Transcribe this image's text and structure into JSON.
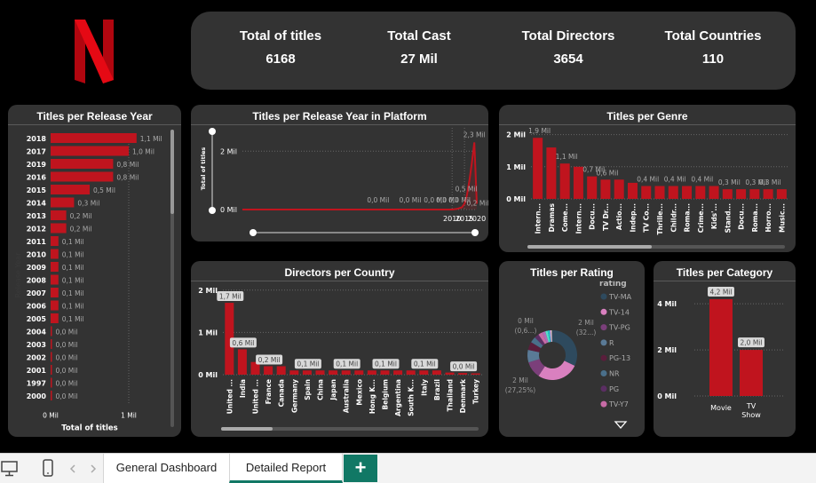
{
  "brand": {
    "logo_letter": "N",
    "logo_color": "#e50914"
  },
  "accent": "#c0141e",
  "kpis": [
    {
      "label": "Total of titles",
      "value": "6168"
    },
    {
      "label": "Total Cast",
      "value": "27 Mil"
    },
    {
      "label": "Total Directors",
      "value": "3654"
    },
    {
      "label": "Total Countries",
      "value": "110"
    }
  ],
  "panels": {
    "release_year": "Titles per Release Year",
    "platform": "Titles per Release Year in Platform",
    "genre": "Titles per Genre",
    "country": "Directors per Country",
    "rating": "Titles per Rating",
    "category": "Titles per Category"
  },
  "tabs": {
    "general": "General Dashboard",
    "detailed": "Detailed Report",
    "add": "+"
  },
  "chart_data": [
    {
      "id": "release_year",
      "type": "bar",
      "orientation": "horizontal",
      "categories": [
        "2018",
        "2017",
        "2019",
        "2016",
        "2015",
        "2014",
        "2013",
        "2012",
        "2011",
        "2010",
        "2009",
        "2008",
        "2007",
        "2006",
        "2005",
        "2004",
        "2003",
        "2002",
        "2001",
        "1997",
        "2000"
      ],
      "values": [
        1.1,
        1.0,
        0.8,
        0.8,
        0.5,
        0.3,
        0.2,
        0.2,
        0.1,
        0.1,
        0.1,
        0.1,
        0.1,
        0.1,
        0.1,
        0.0,
        0.0,
        0.0,
        0.0,
        0.0,
        0.0
      ],
      "labels": [
        "1,1 Mil",
        "1,0 Mil",
        "0,8 Mil",
        "0,8 Mil",
        "0,5 Mil",
        "0,3 Mil",
        "0,2 Mil",
        "0,2 Mil",
        "0,1 Mil",
        "0,1 Mil",
        "0,1 Mil",
        "0,1 Mil",
        "0,1 Mil",
        "0,1 Mil",
        "0,1 Mil",
        "0,0 Mil",
        "0,0 Mil",
        "0,0 Mil",
        "0,0 Mil",
        "0,0 Mil",
        "0,0 Mil"
      ],
      "xticks": [
        "0 Mil",
        "1 Mil"
      ],
      "xlabel": "Total of titles",
      "ylabel": "Release Year",
      "xlim": [
        0,
        1.2
      ]
    },
    {
      "id": "platform",
      "type": "area",
      "x": [
        1925,
        1995,
        2000,
        2005,
        2008,
        2010,
        2012,
        2014,
        2015,
        2016,
        2017,
        2018,
        2019,
        2020
      ],
      "y": [
        0,
        0,
        0,
        0,
        0,
        0,
        0.02,
        0.08,
        0.2,
        0.5,
        1.0,
        1.6,
        2.3,
        0.2
      ],
      "labels": [
        "0,0 Mil",
        "0,0 Mil",
        "0,0 Mil",
        "0,0 Mil",
        "0,0 Mil",
        "0,5 Mil",
        "2,3 Mil",
        "0,2 Mil"
      ],
      "xticks": [
        "2010",
        "2015",
        "2020"
      ],
      "yticks": [
        "0 Mil",
        "2 Mil"
      ],
      "ylabel": "Total of titles",
      "ylim": [
        0,
        2.8
      ]
    },
    {
      "id": "genre",
      "type": "bar",
      "categories": [
        "Intern...",
        "Dramas",
        "Come...",
        "Intern...",
        "Docu...",
        "TV Dr...",
        "Actio...",
        "Indep...",
        "TV Co...",
        "Thrille...",
        "Childr...",
        "Roma...",
        "Crime...",
        "Kids'...",
        "Stand...",
        "Docu...",
        "Roma...",
        "Horro...",
        "Music..."
      ],
      "values": [
        1.9,
        1.6,
        1.1,
        1.0,
        0.7,
        0.6,
        0.6,
        0.5,
        0.4,
        0.4,
        0.4,
        0.4,
        0.4,
        0.4,
        0.3,
        0.3,
        0.3,
        0.3,
        0.3
      ],
      "labels": [
        "1,9 Mil",
        "",
        "1,1 Mil",
        "",
        "0,7 Mil",
        "0,6 Mil",
        "",
        "",
        "0,4 Mil",
        "",
        "0,4 Mil",
        "",
        "0,4 Mil",
        "",
        "0,3 Mil",
        "",
        "0,3 Mil",
        "0,3 Mil",
        ""
      ],
      "yticks": [
        "2 Mil",
        "1 Mil",
        "0 Mil"
      ],
      "ylim": [
        0,
        2.1
      ]
    },
    {
      "id": "country",
      "type": "bar",
      "categories": [
        "United ...",
        "India",
        "United ...",
        "France",
        "Canada",
        "Germany",
        "Spain",
        "China",
        "Japan",
        "Australia",
        "Mexico",
        "Hong K...",
        "Belgium",
        "Argentina",
        "South K...",
        "Italy",
        "Brazil",
        "Thailand",
        "Denmark",
        "Turkey"
      ],
      "values": [
        1.7,
        0.6,
        0.3,
        0.2,
        0.2,
        0.1,
        0.1,
        0.1,
        0.1,
        0.1,
        0.1,
        0.1,
        0.1,
        0.1,
        0.1,
        0.1,
        0.1,
        0.05,
        0.04,
        0.03
      ],
      "labels": [
        "1,7 Mil",
        "0,6 Mil",
        "",
        "0,2 Mil",
        "",
        "",
        "0,1 Mil",
        "",
        "",
        "0,1 Mil",
        "",
        "",
        "0,1 Mil",
        "",
        "",
        "0,1 Mil",
        "",
        "",
        "0,0 Mil",
        ""
      ],
      "yticks": [
        "2 Mil",
        "1 Mil",
        "0 Mil"
      ],
      "ylim": [
        0,
        2.1
      ]
    },
    {
      "id": "rating",
      "type": "pie",
      "legend_title": "rating",
      "legend": [
        {
          "name": "TV-MA",
          "color": "#2e4a5e"
        },
        {
          "name": "TV-14",
          "color": "#d980bf"
        },
        {
          "name": "TV-PG",
          "color": "#7b3f7a"
        },
        {
          "name": "R",
          "color": "#5a7a96"
        },
        {
          "name": "PG-13",
          "color": "#5a1e3c"
        },
        {
          "name": "NR",
          "color": "#4a6f8a"
        },
        {
          "name": "PG",
          "color": "#5b2e63"
        },
        {
          "name": "TV-Y7",
          "color": "#c76ba6"
        }
      ],
      "values": [
        32,
        27.25,
        10.9,
        8.2,
        5.3,
        3.9,
        3.0,
        2.7,
        2.1,
        1.5,
        1.3,
        0.65,
        0.6,
        0.5
      ],
      "colors": [
        "#2e4a5e",
        "#d980bf",
        "#7b3f7a",
        "#5a7a96",
        "#5a1e3c",
        "#4a6f8a",
        "#5b2e63",
        "#c76ba6",
        "#b06db8",
        "#59e0c8",
        "#1ec8c8",
        "#a07ad6",
        "#fde3ec",
        "#8a8a8a"
      ],
      "annotations": [
        "2 Mil",
        "(32...)",
        "2 Mil",
        "(27,25%)",
        "0 Mil",
        "(0,6...)"
      ]
    },
    {
      "id": "category",
      "type": "bar",
      "categories": [
        "Movie",
        "TV Show"
      ],
      "values": [
        4.2,
        2.0
      ],
      "labels": [
        "4,2 Mil",
        "2,0 Mil"
      ],
      "yticks": [
        "4 Mil",
        "2 Mil",
        "0 Mil"
      ],
      "ylim": [
        0,
        4.7
      ]
    }
  ]
}
